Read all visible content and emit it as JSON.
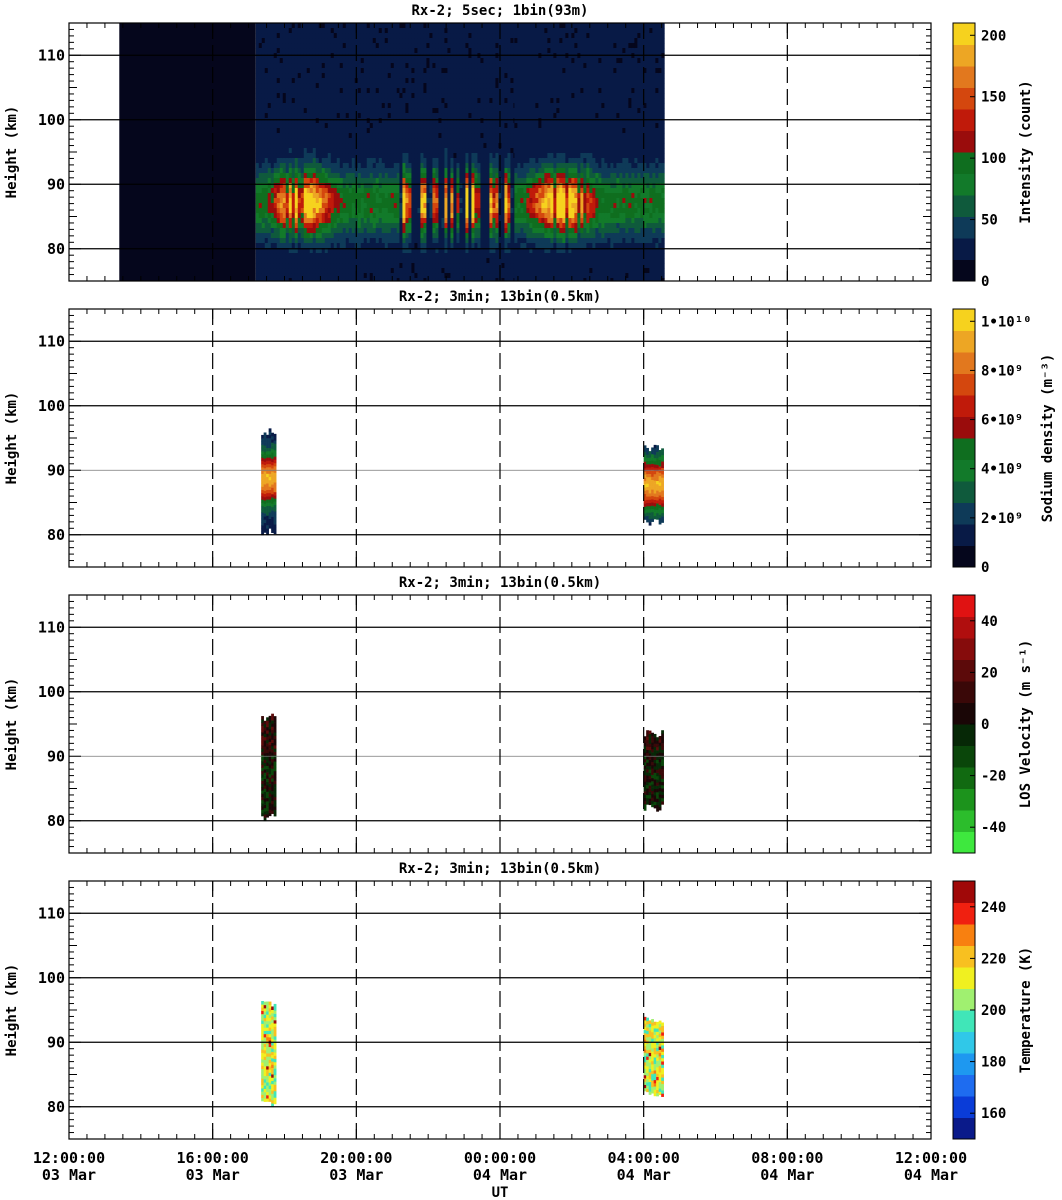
{
  "chart_data": [
    {
      "type": "heatmap",
      "title": "Rx-2;  5sec; 1bin(93m)",
      "xlabel": "",
      "ylabel": "Height (km)",
      "ylim": [
        75,
        115
      ],
      "yticks": [
        80,
        90,
        100,
        110
      ],
      "colorbar": {
        "label": "Intensity (count)",
        "ticks": [
          "0",
          "50",
          "100",
          "150",
          "200"
        ],
        "tick_values": [
          0,
          50,
          100,
          150,
          200
        ],
        "range": [
          0,
          210
        ],
        "colors": [
          "#05061c",
          "#081a46",
          "#0e3a58",
          "#0f5a3c",
          "#127a2a",
          "#0f6e1f",
          "#9a0c0c",
          "#c01a0a",
          "#d4470e",
          "#e2781e",
          "#eda624",
          "#f6d21e"
        ]
      },
      "data_spans": [
        {
          "start_hour": 13.4,
          "end_hour": 17.2,
          "kind": "background"
        },
        {
          "start_hour": 17.2,
          "end_hour": 21.2,
          "kind": "layer"
        },
        {
          "start_hour": 21.2,
          "end_hour": 24.4,
          "kind": "sparse"
        },
        {
          "start_hour": 24.4,
          "end_hour": 28.5,
          "kind": "layer"
        }
      ],
      "layer_peak_km": 87.5
    },
    {
      "type": "heatmap",
      "title": "Rx-2; 3min; 13bin(0.5km)",
      "xlabel": "",
      "ylabel": "Height (km)",
      "ylim": [
        75,
        115
      ],
      "yticks": [
        80,
        90,
        100,
        110
      ],
      "colorbar": {
        "label": "Sodium density (m⁻³)",
        "ticks": [
          "0",
          "2•10⁹",
          "4•10⁹",
          "6•10⁹",
          "8•10⁹",
          "1•10¹⁰"
        ],
        "tick_values": [
          0,
          2,
          4,
          6,
          8,
          10
        ],
        "range": [
          0,
          10.5
        ],
        "colors": [
          "#05061c",
          "#081a46",
          "#0e3a58",
          "#0f5a3c",
          "#127a2a",
          "#0f6e1f",
          "#9a0c0c",
          "#c01a0a",
          "#d4470e",
          "#e2781e",
          "#eda624",
          "#f6d21e"
        ]
      },
      "blocks": [
        {
          "start_hour": 17.35,
          "end_hour": 17.75,
          "bottom_km": 80.5,
          "top_km": 96,
          "peak_km": 88.5
        },
        {
          "start_hour": 28.0,
          "end_hour": 28.5,
          "bottom_km": 82,
          "top_km": 93.5,
          "peak_km": 87.5
        }
      ]
    },
    {
      "type": "heatmap",
      "title": "Rx-2; 3min; 13bin(0.5km)",
      "xlabel": "",
      "ylabel": "Height (km)",
      "ylim": [
        75,
        115
      ],
      "yticks": [
        80,
        90,
        100,
        110
      ],
      "colorbar": {
        "label": "LOS Velocity (m s⁻¹)",
        "ticks": [
          "-40",
          "-20",
          "0",
          "20",
          "40"
        ],
        "tick_values": [
          -40,
          -20,
          0,
          20,
          40
        ],
        "range": [
          -50,
          50
        ],
        "colors": [
          "#3ee83e",
          "#2cbd2c",
          "#1c931c",
          "#116a11",
          "#0a460a",
          "#062806",
          "#1a0606",
          "#3a0808",
          "#5c0a0a",
          "#860c0c",
          "#b00e0e",
          "#e01212"
        ]
      },
      "blocks": [
        {
          "start_hour": 17.35,
          "end_hour": 17.75,
          "bottom_km": 80.5,
          "top_km": 96
        },
        {
          "start_hour": 28.0,
          "end_hour": 28.5,
          "bottom_km": 82,
          "top_km": 93.5
        }
      ]
    },
    {
      "type": "heatmap",
      "title": "Rx-2; 3min; 13bin(0.5km)",
      "xlabel": "UT",
      "ylabel": "Height (km)",
      "ylim": [
        75,
        115
      ],
      "yticks": [
        80,
        90,
        100,
        110
      ],
      "colorbar": {
        "label": "Temperature (K)",
        "ticks": [
          "160",
          "180",
          "200",
          "220",
          "240"
        ],
        "tick_values": [
          160,
          180,
          200,
          220,
          240
        ],
        "range": [
          150,
          250
        ],
        "colors": [
          "#0a1a8a",
          "#0a3cd8",
          "#1e6cf0",
          "#1e98f0",
          "#30c8e8",
          "#40e6b8",
          "#a0f070",
          "#f0f020",
          "#f8c020",
          "#f88010",
          "#f02010",
          "#a00808"
        ]
      },
      "blocks": [
        {
          "start_hour": 17.35,
          "end_hour": 17.75,
          "bottom_km": 80.5,
          "top_km": 96
        },
        {
          "start_hour": 28.0,
          "end_hour": 28.5,
          "bottom_km": 82,
          "top_km": 93.5
        }
      ]
    }
  ],
  "x_axis": {
    "range_hours": [
      12,
      36
    ],
    "label": "UT",
    "ticks": [
      {
        "hour": 12,
        "time": "12:00:00",
        "date": "03 Mar"
      },
      {
        "hour": 16,
        "time": "16:00:00",
        "date": "03 Mar"
      },
      {
        "hour": 20,
        "time": "20:00:00",
        "date": "03 Mar"
      },
      {
        "hour": 24,
        "time": "00:00:00",
        "date": "04 Mar"
      },
      {
        "hour": 28,
        "time": "04:00:00",
        "date": "04 Mar"
      },
      {
        "hour": 32,
        "time": "08:00:00",
        "date": "04 Mar"
      },
      {
        "hour": 36,
        "time": "12:00:00",
        "date": "04 Mar"
      }
    ]
  }
}
